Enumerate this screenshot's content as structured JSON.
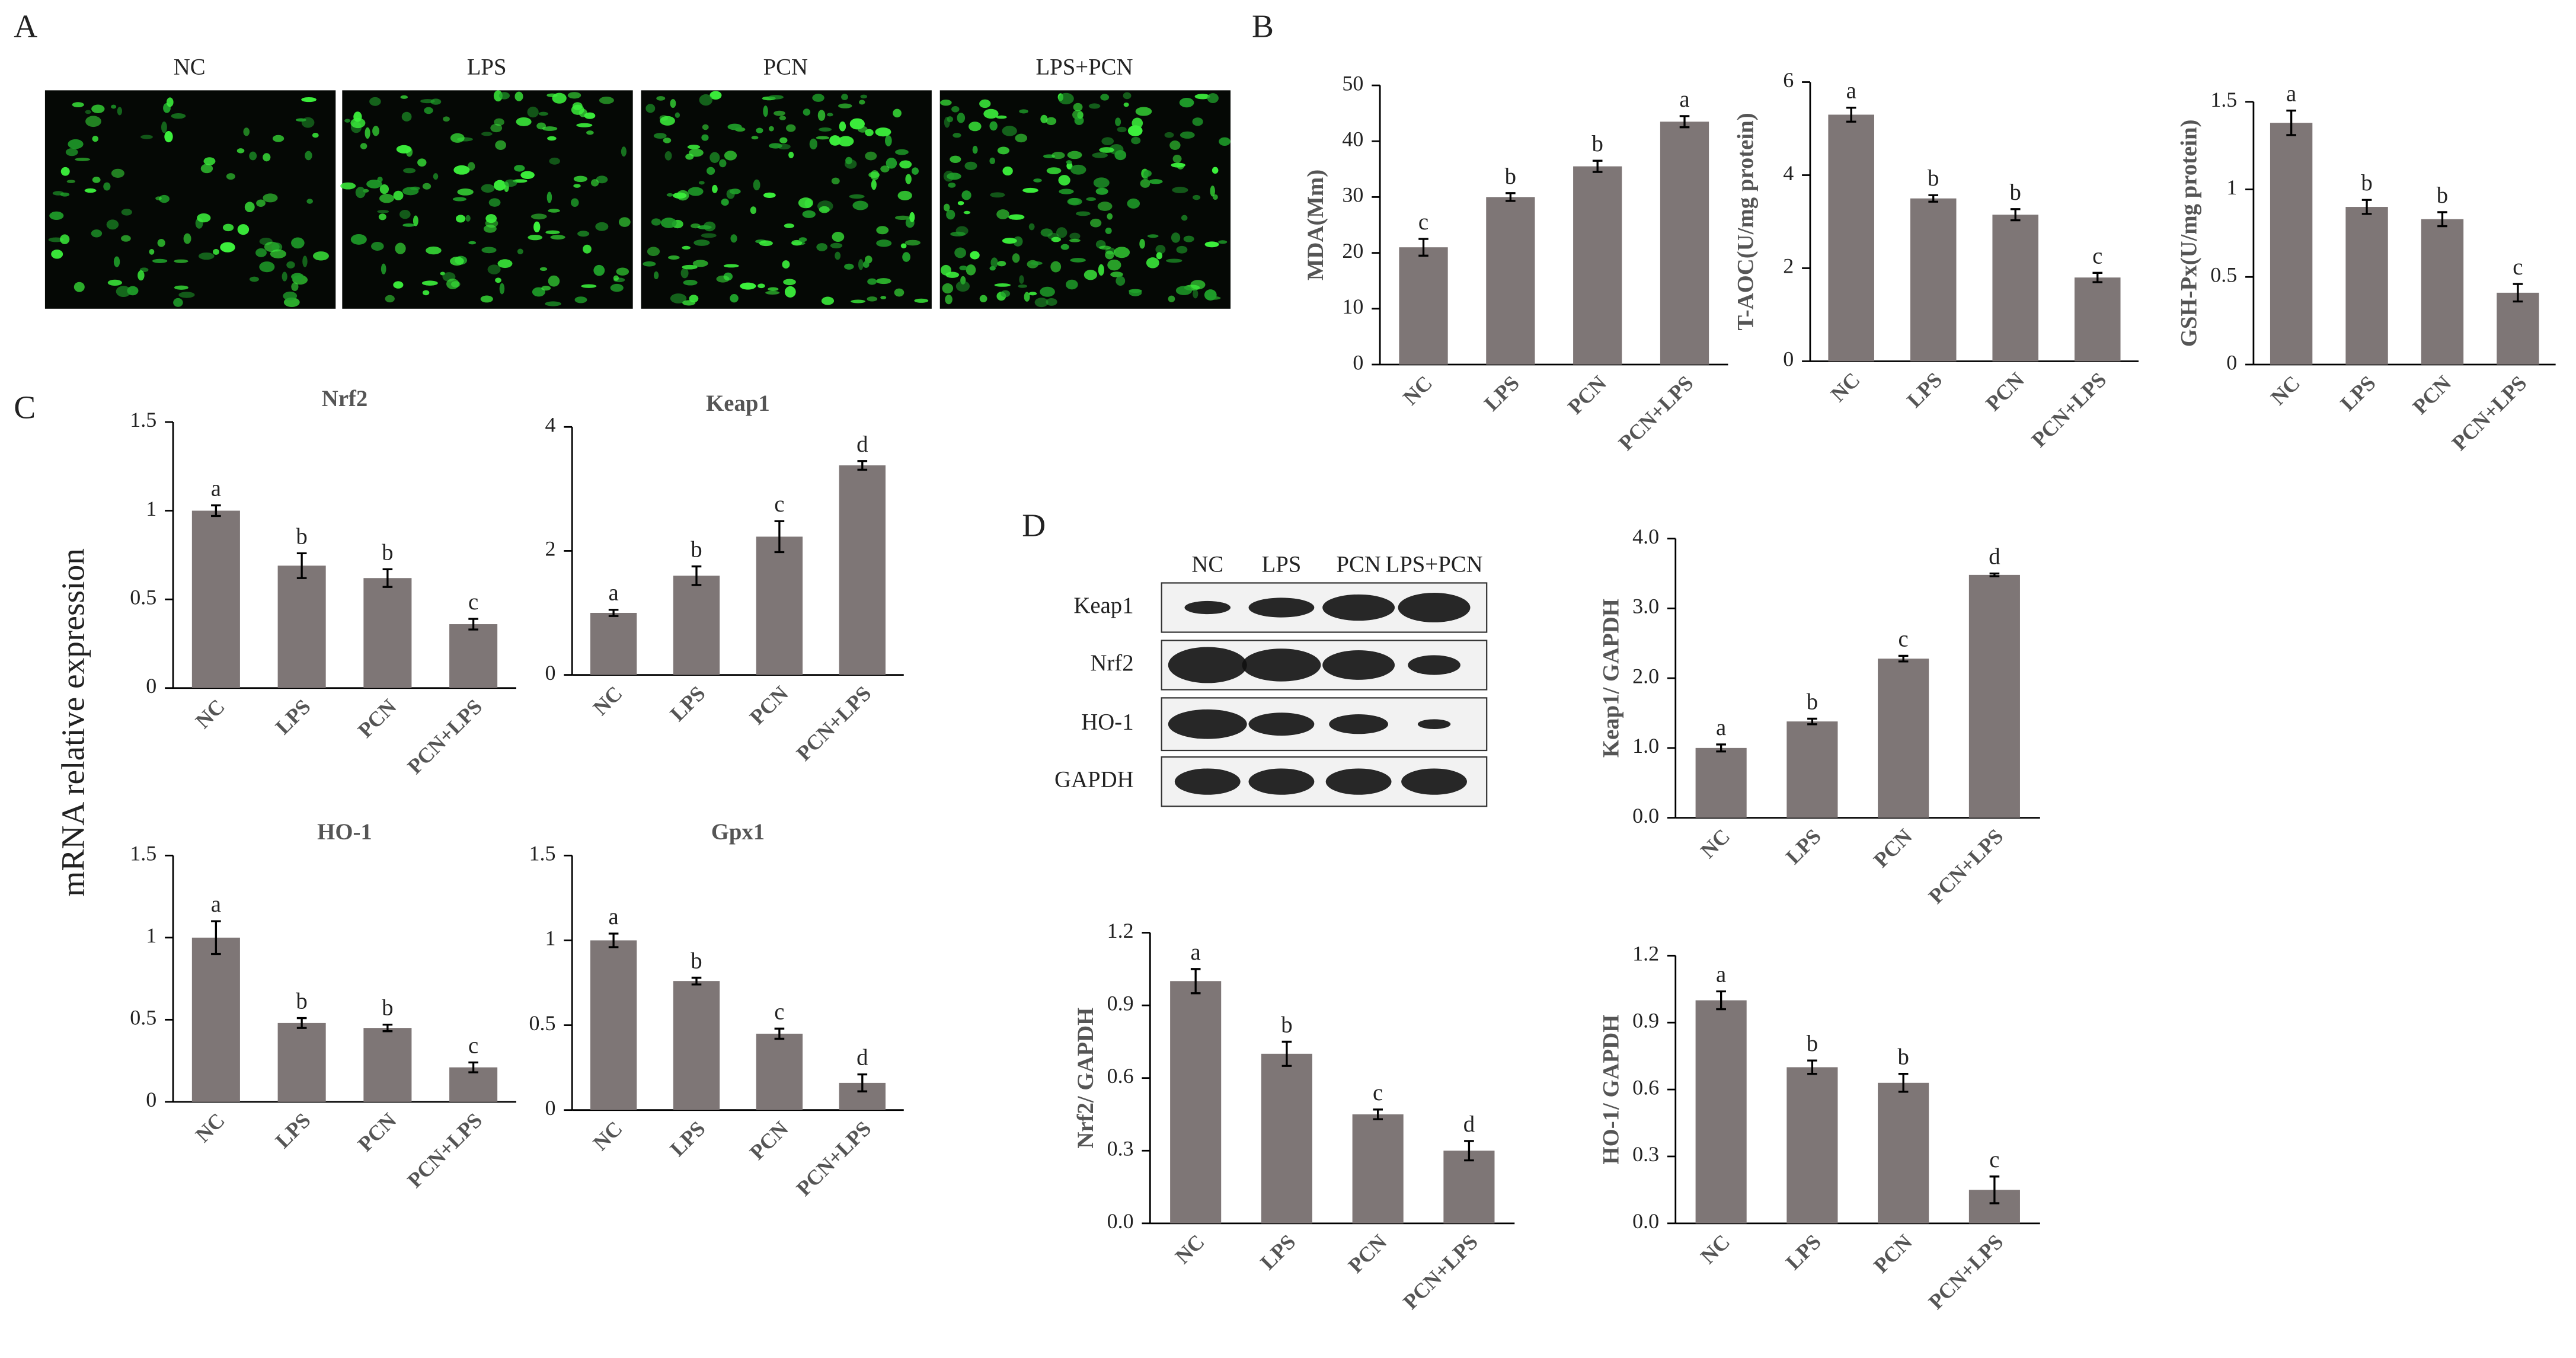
{
  "panel_labels": [
    "A",
    "B",
    "C",
    "D"
  ],
  "fluorescence": {
    "labels": [
      "NC",
      "LPS",
      "PCN",
      "LPS+PCN"
    ]
  },
  "western_blot": {
    "lanes": [
      "NC",
      "LPS",
      "PCN",
      "LPS+PCN"
    ],
    "proteins": [
      "Keap1",
      "Nrf2",
      "HO-1",
      "GAPDH"
    ]
  },
  "shared_ylabel": "mRNA relative expression",
  "chart_data": [
    {
      "type": "bar",
      "ylabel": "MDA(Mm)",
      "categories": [
        "NC",
        "LPS",
        "PCN",
        "PCN+LPS"
      ],
      "values": [
        21,
        30,
        35.5,
        43.5
      ],
      "errors": [
        1.5,
        0.7,
        1,
        1
      ],
      "annotations": [
        "c",
        "b",
        "b",
        "a"
      ],
      "color": "#7e7676",
      "ylim": [
        0,
        50
      ],
      "yticks": [
        0,
        10,
        20,
        30,
        40,
        50
      ]
    },
    {
      "type": "bar",
      "ylabel": "T-AOC(U/mg protein)",
      "categories": [
        "NC",
        "LPS",
        "PCN",
        "PCN+LPS"
      ],
      "values": [
        5.3,
        3.5,
        3.15,
        1.8
      ],
      "errors": [
        0.15,
        0.07,
        0.12,
        0.1
      ],
      "annotations": [
        "a",
        "b",
        "b",
        "c"
      ],
      "color": "#7e7676",
      "ylim": [
        0,
        6
      ],
      "yticks": [
        0,
        2,
        4,
        6
      ]
    },
    {
      "type": "bar",
      "ylabel": "GSH-Px(U/mg protein)",
      "categories": [
        "NC",
        "LPS",
        "PCN",
        "PCN+LPS"
      ],
      "values": [
        1.38,
        0.9,
        0.83,
        0.41
      ],
      "errors": [
        0.07,
        0.04,
        0.04,
        0.05
      ],
      "annotations": [
        "a",
        "b",
        "b",
        "c"
      ],
      "color": "#7e7676",
      "ylim": [
        0,
        1.5
      ],
      "yticks": [
        0,
        0.5,
        1,
        1.5
      ]
    },
    {
      "type": "bar",
      "title": "Nrf2",
      "categories": [
        "NC",
        "LPS",
        "PCN",
        "PCN+LPS"
      ],
      "values": [
        1.0,
        0.69,
        0.62,
        0.36
      ],
      "errors": [
        0.03,
        0.07,
        0.05,
        0.03
      ],
      "annotations": [
        "a",
        "b",
        "b",
        "c"
      ],
      "color": "#7e7676",
      "ylim": [
        0,
        1.5
      ],
      "yticks": [
        0,
        0.5,
        1,
        1.5
      ]
    },
    {
      "type": "bar",
      "title": "Keap1",
      "categories": [
        "NC",
        "LPS",
        "PCN",
        "PCN+LPS"
      ],
      "values": [
        1.0,
        1.6,
        2.23,
        3.38
      ],
      "errors": [
        0.05,
        0.15,
        0.25,
        0.07
      ],
      "annotations": [
        "a",
        "b",
        "c",
        "d"
      ],
      "color": "#7e7676",
      "ylim": [
        0,
        4
      ],
      "yticks": [
        0,
        2,
        4
      ]
    },
    {
      "type": "bar",
      "title": "HO-1",
      "categories": [
        "NC",
        "LPS",
        "PCN",
        "PCN+LPS"
      ],
      "values": [
        1.0,
        0.48,
        0.45,
        0.21
      ],
      "errors": [
        0.1,
        0.03,
        0.02,
        0.03
      ],
      "annotations": [
        "a",
        "b",
        "b",
        "c"
      ],
      "color": "#7e7676",
      "ylim": [
        0,
        1.5
      ],
      "yticks": [
        0,
        0.5,
        1,
        1.5
      ]
    },
    {
      "type": "bar",
      "title": "Gpx1",
      "categories": [
        "NC",
        "LPS",
        "PCN",
        "PCN+LPS"
      ],
      "values": [
        1.0,
        0.76,
        0.45,
        0.16
      ],
      "errors": [
        0.04,
        0.02,
        0.03,
        0.05
      ],
      "annotations": [
        "a",
        "b",
        "c",
        "d"
      ],
      "color": "#7e7676",
      "ylim": [
        0,
        1.5
      ],
      "yticks": [
        0,
        0.5,
        1,
        1.5
      ]
    },
    {
      "type": "bar",
      "ylabel": "Keap1/ GAPDH",
      "categories": [
        "NC",
        "LPS",
        "PCN",
        "PCN+LPS"
      ],
      "values": [
        1.0,
        1.38,
        2.28,
        3.48
      ],
      "errors": [
        0.05,
        0.04,
        0.04,
        0.02
      ],
      "annotations": [
        "a",
        "b",
        "c",
        "d"
      ],
      "color": "#7e7676",
      "ylim": [
        0,
        4
      ],
      "yticks": [
        {
          "value": 0,
          "label": "0.0"
        },
        {
          "value": 1,
          "label": "1.0"
        },
        {
          "value": 2,
          "label": "2.0"
        },
        {
          "value": 3,
          "label": "3.0"
        },
        {
          "value": 4,
          "label": "4.0"
        }
      ]
    },
    {
      "type": "bar",
      "ylabel": "Nrf2/ GAPDH",
      "categories": [
        "NC",
        "LPS",
        "PCN",
        "PCN+LPS"
      ],
      "values": [
        1.0,
        0.7,
        0.45,
        0.3
      ],
      "errors": [
        0.05,
        0.05,
        0.02,
        0.04
      ],
      "annotations": [
        "a",
        "b",
        "c",
        "d"
      ],
      "color": "#7e7676",
      "ylim": [
        0,
        1.2
      ],
      "yticks": [
        {
          "value": 0,
          "label": "0.0"
        },
        0.3,
        0.6,
        0.9,
        1.2
      ]
    },
    {
      "type": "bar",
      "ylabel": "HO-1/ GAPDH",
      "categories": [
        "NC",
        "LPS",
        "PCN",
        "PCN+LPS"
      ],
      "values": [
        1.0,
        0.7,
        0.63,
        0.15
      ],
      "errors": [
        0.04,
        0.03,
        0.04,
        0.06
      ],
      "annotations": [
        "a",
        "b",
        "b",
        "c"
      ],
      "color": "#7e7676",
      "ylim": [
        0,
        1.2
      ],
      "yticks": [
        {
          "value": 0,
          "label": "0.0"
        },
        0.3,
        0.6,
        0.9,
        1.2
      ]
    }
  ]
}
